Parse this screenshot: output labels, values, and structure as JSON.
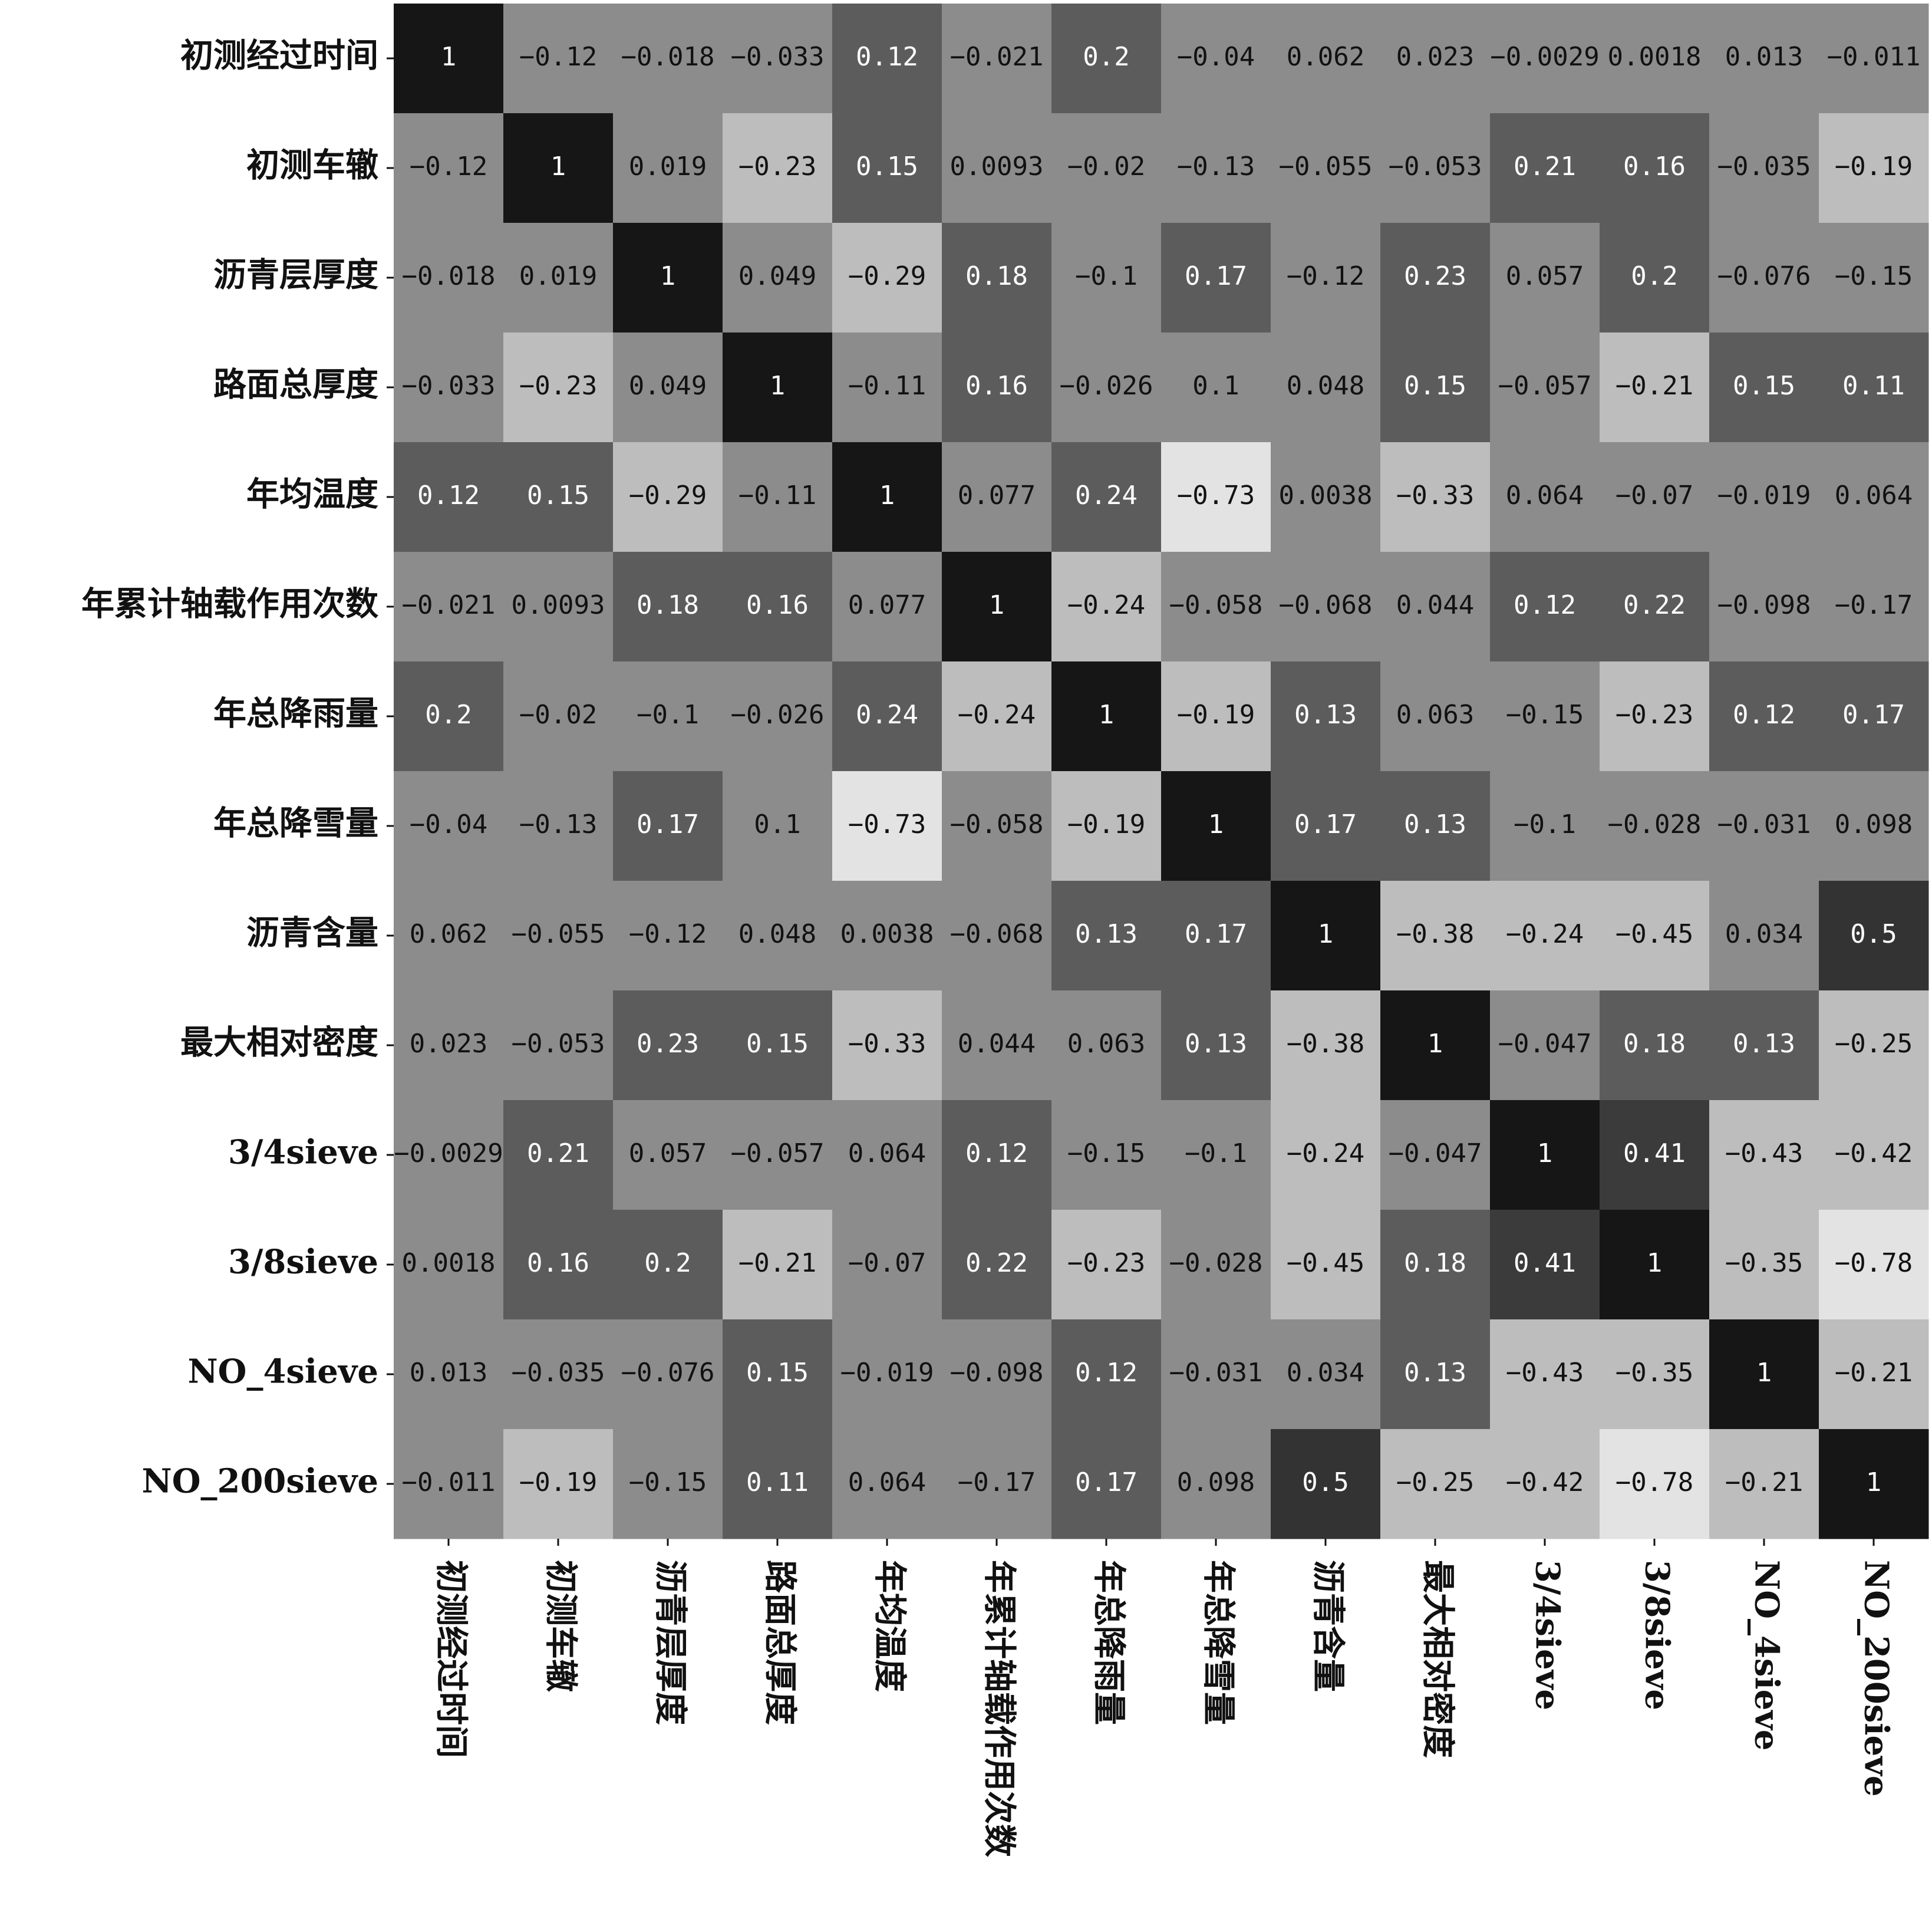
{
  "chart_data": {
    "type": "heatmap",
    "x_categories": [
      "初测经过时间",
      "初测车辙",
      "沥青层厚度",
      "路面总厚度",
      "年均温度",
      "年累计轴载作用次数",
      "年总降雨量",
      "年总降雪量",
      "沥青含量",
      "最大相对密度",
      "3/4sieve",
      "3/8sieve",
      "NO_4sieve",
      "NO_200sieve"
    ],
    "y_categories": [
      "初测经过时间",
      "初测车辙",
      "沥青层厚度",
      "路面总厚度",
      "年均温度",
      "年累计轴载作用次数",
      "年总降雨量",
      "年总降雪量",
      "沥青含量",
      "最大相对密度",
      "3/4sieve",
      "3/8sieve",
      "NO_4sieve",
      "NO_200sieve"
    ],
    "values": [
      [
        1,
        -0.12,
        -0.018,
        -0.033,
        0.12,
        -0.021,
        0.2,
        -0.04,
        0.062,
        0.023,
        -0.0029,
        0.0018,
        0.013,
        -0.011
      ],
      [
        -0.12,
        1,
        0.019,
        -0.23,
        0.15,
        0.0093,
        -0.02,
        -0.13,
        -0.055,
        -0.053,
        0.21,
        0.16,
        -0.035,
        -0.19
      ],
      [
        -0.018,
        0.019,
        1,
        0.049,
        -0.29,
        0.18,
        -0.1,
        0.17,
        -0.12,
        0.23,
        0.057,
        0.2,
        -0.076,
        -0.15
      ],
      [
        -0.033,
        -0.23,
        0.049,
        1,
        -0.11,
        0.16,
        -0.026,
        0.1,
        0.048,
        0.15,
        -0.057,
        -0.21,
        0.15,
        0.11
      ],
      [
        0.12,
        0.15,
        -0.29,
        -0.11,
        1,
        0.077,
        0.24,
        -0.73,
        0.0038,
        -0.33,
        0.064,
        -0.07,
        -0.019,
        0.064
      ],
      [
        -0.021,
        0.0093,
        0.18,
        0.16,
        0.077,
        1,
        -0.24,
        -0.058,
        -0.068,
        0.044,
        0.12,
        0.22,
        -0.098,
        -0.17
      ],
      [
        0.2,
        -0.02,
        -0.1,
        -0.026,
        0.24,
        -0.24,
        1,
        -0.19,
        0.13,
        0.063,
        -0.15,
        -0.23,
        0.12,
        0.17
      ],
      [
        -0.04,
        -0.13,
        0.17,
        0.1,
        -0.73,
        -0.058,
        -0.19,
        1,
        0.17,
        0.13,
        -0.1,
        -0.028,
        -0.031,
        0.098
      ],
      [
        0.062,
        -0.055,
        -0.12,
        0.048,
        0.0038,
        -0.068,
        0.13,
        0.17,
        1,
        -0.38,
        -0.24,
        -0.45,
        0.034,
        0.5
      ],
      [
        0.023,
        -0.053,
        0.23,
        0.15,
        -0.33,
        0.044,
        0.063,
        0.13,
        -0.38,
        1,
        -0.047,
        0.18,
        0.13,
        -0.25
      ],
      [
        -0.0029,
        0.21,
        0.057,
        -0.057,
        0.064,
        0.12,
        -0.15,
        -0.1,
        -0.24,
        -0.047,
        1,
        0.41,
        -0.43,
        -0.42
      ],
      [
        0.0018,
        0.16,
        0.2,
        -0.21,
        -0.07,
        0.22,
        -0.23,
        -0.028,
        -0.45,
        0.18,
        0.41,
        1,
        -0.35,
        -0.78
      ],
      [
        0.013,
        -0.035,
        -0.076,
        0.15,
        -0.019,
        -0.098,
        0.12,
        -0.031,
        0.034,
        0.13,
        -0.43,
        -0.35,
        1,
        -0.21
      ],
      [
        -0.011,
        -0.19,
        -0.15,
        0.11,
        0.064,
        -0.17,
        0.17,
        0.098,
        0.5,
        -0.25,
        -0.42,
        -0.78,
        -0.21,
        1
      ]
    ],
    "value_labels": [
      [
        "1",
        "−0.12",
        "−0.018",
        "−0.033",
        "0.12",
        "−0.021",
        "0.2",
        "−0.04",
        "0.062",
        "0.023",
        "−0.0029",
        "0.0018",
        "0.013",
        "−0.011"
      ],
      [
        "−0.12",
        "1",
        "0.019",
        "−0.23",
        "0.15",
        "0.0093",
        "−0.02",
        "−0.13",
        "−0.055",
        "−0.053",
        "0.21",
        "0.16",
        "−0.035",
        "−0.19"
      ],
      [
        "−0.018",
        "0.019",
        "1",
        "0.049",
        "−0.29",
        "0.18",
        "−0.1",
        "0.17",
        "−0.12",
        "0.23",
        "0.057",
        "0.2",
        "−0.076",
        "−0.15"
      ],
      [
        "−0.033",
        "−0.23",
        "0.049",
        "1",
        "−0.11",
        "0.16",
        "−0.026",
        "0.1",
        "0.048",
        "0.15",
        "−0.057",
        "−0.21",
        "0.15",
        "0.11"
      ],
      [
        "0.12",
        "0.15",
        "−0.29",
        "−0.11",
        "1",
        "0.077",
        "0.24",
        "−0.73",
        "0.0038",
        "−0.33",
        "0.064",
        "−0.07",
        "−0.019",
        "0.064"
      ],
      [
        "−0.021",
        "0.0093",
        "0.18",
        "0.16",
        "0.077",
        "1",
        "−0.24",
        "−0.058",
        "−0.068",
        "0.044",
        "0.12",
        "0.22",
        "−0.098",
        "−0.17"
      ],
      [
        "0.2",
        "−0.02",
        "−0.1",
        "−0.026",
        "0.24",
        "−0.24",
        "1",
        "−0.19",
        "0.13",
        "0.063",
        "−0.15",
        "−0.23",
        "0.12",
        "0.17"
      ],
      [
        "−0.04",
        "−0.13",
        "0.17",
        "0.1",
        "−0.73",
        "−0.058",
        "−0.19",
        "1",
        "0.17",
        "0.13",
        "−0.1",
        "−0.028",
        "−0.031",
        "0.098"
      ],
      [
        "0.062",
        "−0.055",
        "−0.12",
        "0.048",
        "0.0038",
        "−0.068",
        "0.13",
        "0.17",
        "1",
        "−0.38",
        "−0.24",
        "−0.45",
        "0.034",
        "0.5"
      ],
      [
        "0.023",
        "−0.053",
        "0.23",
        "0.15",
        "−0.33",
        "0.044",
        "0.063",
        "0.13",
        "−0.38",
        "1",
        "−0.047",
        "0.18",
        "0.13",
        "−0.25"
      ],
      [
        "−0.0029",
        "0.21",
        "0.057",
        "−0.057",
        "0.064",
        "0.12",
        "−0.15",
        "−0.1",
        "−0.24",
        "−0.047",
        "1",
        "0.41",
        "−0.43",
        "−0.42"
      ],
      [
        "0.0018",
        "0.16",
        "0.2",
        "−0.21",
        "−0.07",
        "0.22",
        "−0.23",
        "−0.028",
        "−0.45",
        "0.18",
        "0.41",
        "1",
        "−0.35",
        "−0.78"
      ],
      [
        "0.013",
        "−0.035",
        "−0.076",
        "0.15",
        "−0.019",
        "−0.098",
        "0.12",
        "−0.031",
        "0.034",
        "0.13",
        "−0.43",
        "−0.35",
        "1",
        "−0.21"
      ],
      [
        "−0.011",
        "−0.19",
        "−0.15",
        "0.11",
        "0.064",
        "−0.17",
        "0.17",
        "0.098",
        "0.5",
        "−0.25",
        "−0.42",
        "−0.78",
        "−0.21",
        "1"
      ]
    ],
    "colormap": "gray_r"
  }
}
